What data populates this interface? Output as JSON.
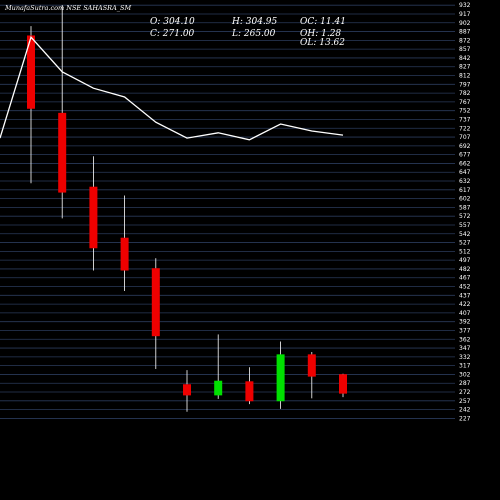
{
  "header": {
    "title": "MunafaSutra.com NSE SAHASRA_SM",
    "stats": {
      "open": "O: 304.10",
      "close": "C: 271.00",
      "high": "H: 304.95",
      "low": "L: 265.00",
      "oc": "OC: 11.41",
      "oh": "OH: 1.28",
      "ol": "OL: 13.62"
    }
  },
  "colors": {
    "background": "#000000",
    "grid": "#2a3a5a",
    "up": "#00e000",
    "down": "#ee0000",
    "line": "#ffffff",
    "text": "#ffffff"
  },
  "chart_data": {
    "type": "candlestick",
    "ylim": [
      226,
      934
    ],
    "y_ticks": [
      "932",
      "917",
      "902",
      "887",
      "872",
      "857",
      "842",
      "827",
      "812",
      "797",
      "782",
      "767",
      "752",
      "737",
      "722",
      "707",
      "692",
      "677",
      "662",
      "647",
      "632",
      "617",
      "602",
      "587",
      "572",
      "557",
      "542",
      "527",
      "512",
      "497",
      "482",
      "467",
      "452",
      "437",
      "422",
      "407",
      "392",
      "377",
      "362",
      "347",
      "332",
      "317",
      "302",
      "287",
      "272",
      "257",
      "242",
      "227"
    ],
    "candles": [
      {
        "open": 882,
        "high": 898,
        "low": 630,
        "close": 757
      },
      {
        "open": 750,
        "high": 934,
        "low": 570,
        "close": 614
      },
      {
        "open": 624,
        "high": 676,
        "low": 481,
        "close": 519
      },
      {
        "open": 537,
        "high": 609,
        "low": 446,
        "close": 481
      },
      {
        "open": 485,
        "high": 502,
        "low": 313,
        "close": 369
      },
      {
        "open": 287,
        "high": 311,
        "low": 240,
        "close": 268
      },
      {
        "open": 268,
        "high": 372,
        "low": 262,
        "close": 293
      },
      {
        "open": 292,
        "high": 316,
        "low": 253,
        "close": 258
      },
      {
        "open": 258,
        "high": 360,
        "low": 245,
        "close": 338
      },
      {
        "open": 338,
        "high": 342,
        "low": 263,
        "close": 300
      },
      {
        "open": 304.1,
        "high": 304.95,
        "low": 265,
        "close": 271
      }
    ],
    "line_values": [
      707,
      879,
      820,
      792,
      777,
      734,
      707,
      716,
      704,
      731,
      719,
      712
    ]
  }
}
